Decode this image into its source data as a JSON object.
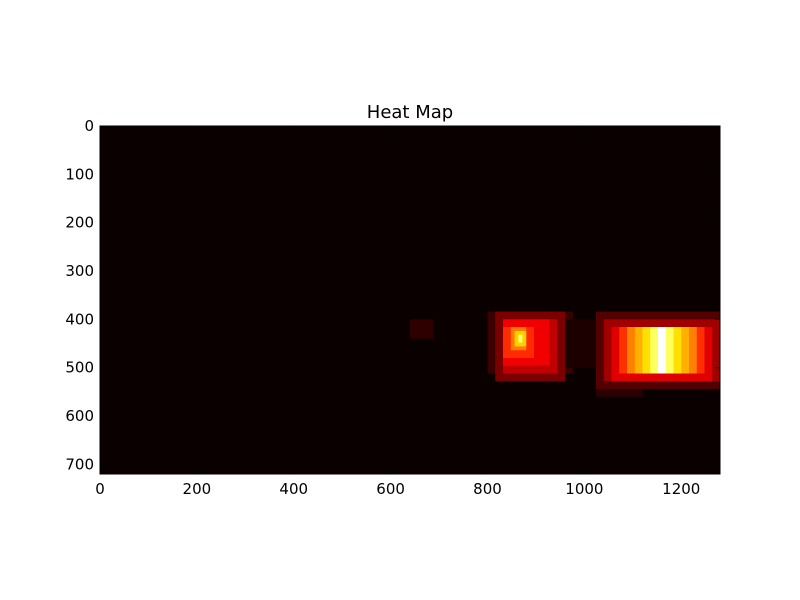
{
  "chart_data": {
    "type": "heatmap",
    "title": "Heat Map",
    "xlabel": "",
    "ylabel": "",
    "xlim": [
      0,
      1280
    ],
    "ylim": [
      720,
      0
    ],
    "y_axis_inverted": true,
    "x_ticks": [
      "0",
      "200",
      "400",
      "600",
      "800",
      "1000",
      "1200"
    ],
    "y_ticks": [
      "0",
      "100",
      "200",
      "300",
      "400",
      "500",
      "600",
      "700"
    ],
    "colormap": "hot",
    "background_color": "#0b0000",
    "grid": false,
    "cells": [
      {
        "x0": 640,
        "x1": 688,
        "y0": 400,
        "y1": 440,
        "color": "#2e0000"
      },
      {
        "x0": 800,
        "x1": 976,
        "y0": 384,
        "y1": 512,
        "color": "#3a0000"
      },
      {
        "x0": 816,
        "x1": 960,
        "y0": 384,
        "y1": 528,
        "color": "#7a0000"
      },
      {
        "x0": 832,
        "x1": 944,
        "y0": 400,
        "y1": 512,
        "color": "#c00000"
      },
      {
        "x0": 832,
        "x1": 928,
        "y0": 400,
        "y1": 496,
        "color": "#f00000"
      },
      {
        "x0": 832,
        "x1": 896,
        "y0": 416,
        "y1": 480,
        "color": "#ff2a00"
      },
      {
        "x0": 848,
        "x1": 880,
        "y0": 416,
        "y1": 464,
        "color": "#ff7a00"
      },
      {
        "x0": 856,
        "x1": 880,
        "y0": 424,
        "y1": 456,
        "color": "#ffd000"
      },
      {
        "x0": 864,
        "x1": 872,
        "y0": 432,
        "y1": 448,
        "color": "#ffff70"
      },
      {
        "x0": 960,
        "x1": 1040,
        "y0": 400,
        "y1": 500,
        "color": "#1c0000"
      },
      {
        "x0": 1024,
        "x1": 1120,
        "y0": 384,
        "y1": 560,
        "color": "#2a0000"
      },
      {
        "x0": 1024,
        "x1": 1280,
        "y0": 384,
        "y1": 544,
        "color": "#520000"
      },
      {
        "x0": 1040,
        "x1": 1280,
        "y0": 400,
        "y1": 528,
        "color": "#a00000"
      },
      {
        "x0": 1056,
        "x1": 1264,
        "y0": 416,
        "y1": 528,
        "color": "#e00000"
      },
      {
        "x0": 1072,
        "x1": 1248,
        "y0": 416,
        "y1": 512,
        "color": "#ff3000"
      },
      {
        "x0": 1088,
        "x1": 1232,
        "y0": 416,
        "y1": 512,
        "color": "#ff8000"
      },
      {
        "x0": 1104,
        "x1": 1216,
        "y0": 416,
        "y1": 512,
        "color": "#ffb000"
      },
      {
        "x0": 1120,
        "x1": 1200,
        "y0": 416,
        "y1": 512,
        "color": "#ffe000"
      },
      {
        "x0": 1136,
        "x1": 1184,
        "y0": 416,
        "y1": 512,
        "color": "#ffff60"
      },
      {
        "x0": 1152,
        "x1": 1168,
        "y0": 416,
        "y1": 512,
        "color": "#ffffff"
      }
    ]
  }
}
